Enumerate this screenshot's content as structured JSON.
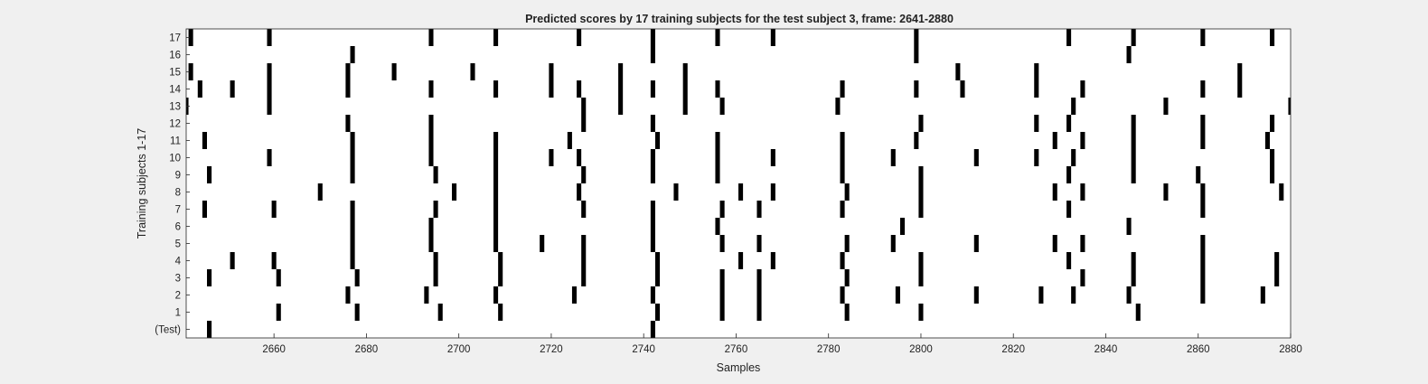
{
  "chart_data": {
    "type": "heatmap",
    "title": "Predicted scores by 17 training subjects for the test subject 3, frame: 2641-2880",
    "xlabel": "Samples",
    "ylabel": "Training subjects 1-17",
    "xlim": [
      2641,
      2880
    ],
    "x_ticks": [
      "2660",
      "2680",
      "2700",
      "2720",
      "2740",
      "2760",
      "2780",
      "2800",
      "2820",
      "2840",
      "2860",
      "2880"
    ],
    "y_ticks": [
      "17",
      "16",
      "15",
      "14",
      "13",
      "12",
      "11",
      "10",
      "9",
      "8",
      "7",
      "6",
      "5",
      "4",
      "3",
      "2",
      "1",
      "(Test)"
    ],
    "grid": false,
    "colormap": {
      "0": "#ffffff",
      "1": "#000000"
    },
    "rows": [
      {
        "label": "17",
        "marks": [
          2642,
          2659,
          2694,
          2708,
          2726,
          2742,
          2756,
          2768,
          2799,
          2832,
          2846,
          2861,
          2876
        ]
      },
      {
        "label": "16",
        "marks": [
          2677,
          2742,
          2799,
          2845
        ]
      },
      {
        "label": "15",
        "marks": [
          2642,
          2659,
          2676,
          2686,
          2703,
          2720,
          2735,
          2749,
          2808,
          2825,
          2869,
          2881
        ]
      },
      {
        "label": "14",
        "marks": [
          2644,
          2651,
          2659,
          2676,
          2694,
          2708,
          2720,
          2726,
          2735,
          2742,
          2749,
          2756,
          2783,
          2799,
          2809,
          2825,
          2835,
          2861,
          2869
        ]
      },
      {
        "label": "13",
        "marks": [
          2641,
          2659,
          2727,
          2735,
          2749,
          2757,
          2782,
          2833,
          2853,
          2880
        ]
      },
      {
        "label": "12",
        "marks": [
          2676,
          2694,
          2727,
          2742,
          2800,
          2825,
          2832,
          2846,
          2861,
          2876
        ]
      },
      {
        "label": "11",
        "marks": [
          2645,
          2677,
          2694,
          2708,
          2724,
          2743,
          2756,
          2783,
          2799,
          2829,
          2835,
          2846,
          2861,
          2875
        ]
      },
      {
        "label": "10",
        "marks": [
          2659,
          2677,
          2694,
          2708,
          2720,
          2726,
          2742,
          2756,
          2768,
          2783,
          2794,
          2812,
          2825,
          2833,
          2846,
          2876
        ]
      },
      {
        "label": "9",
        "marks": [
          2646,
          2677,
          2695,
          2708,
          2727,
          2742,
          2756,
          2783,
          2800,
          2832,
          2846,
          2860,
          2876
        ]
      },
      {
        "label": "8",
        "marks": [
          2670,
          2699,
          2708,
          2726,
          2747,
          2761,
          2768,
          2784,
          2800,
          2829,
          2835,
          2853,
          2861,
          2878
        ]
      },
      {
        "label": "7",
        "marks": [
          2645,
          2660,
          2677,
          2695,
          2708,
          2727,
          2742,
          2757,
          2765,
          2783,
          2800,
          2832,
          2861
        ]
      },
      {
        "label": "6",
        "marks": [
          2677,
          2694,
          2708,
          2742,
          2756,
          2796,
          2845
        ]
      },
      {
        "label": "5",
        "marks": [
          2677,
          2694,
          2708,
          2718,
          2727,
          2742,
          2757,
          2765,
          2784,
          2794,
          2812,
          2829,
          2835,
          2861
        ]
      },
      {
        "label": "4",
        "marks": [
          2651,
          2660,
          2677,
          2695,
          2709,
          2727,
          2743,
          2761,
          2768,
          2783,
          2800,
          2832,
          2846,
          2861,
          2877
        ]
      },
      {
        "label": "3",
        "marks": [
          2646,
          2661,
          2678,
          2695,
          2709,
          2727,
          2743,
          2757,
          2765,
          2784,
          2800,
          2835,
          2846,
          2861,
          2877
        ]
      },
      {
        "label": "2",
        "marks": [
          2676,
          2693,
          2708,
          2725,
          2742,
          2757,
          2765,
          2783,
          2795,
          2812,
          2826,
          2833,
          2845,
          2861,
          2874
        ]
      },
      {
        "label": "1",
        "marks": [
          2661,
          2678,
          2696,
          2709,
          2743,
          2757,
          2765,
          2784,
          2800,
          2847
        ]
      },
      {
        "label": "(Test)",
        "marks": [
          2646,
          2742
        ]
      }
    ]
  }
}
